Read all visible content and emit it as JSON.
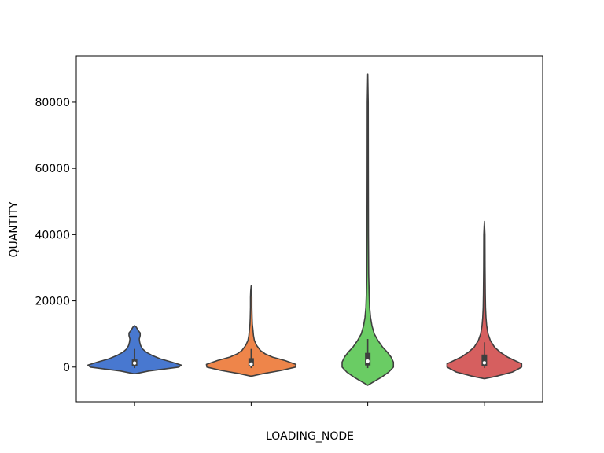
{
  "chart_data": {
    "type": "violin",
    "title": "",
    "xlabel": "LOADING_NODE",
    "ylabel": "QUANTITY",
    "ylim": [
      -10500,
      94000
    ],
    "yticks": [
      0,
      20000,
      40000,
      60000,
      80000
    ],
    "ytick_labels": [
      "0",
      "20000",
      "40000",
      "60000",
      "80000"
    ],
    "categories": [
      "",
      "",
      "",
      ""
    ],
    "grid": false,
    "series": [
      {
        "color": "#4878d0",
        "min": -2000,
        "max": 12500,
        "q1": 300,
        "median": 1200,
        "q3": 2300,
        "whisker_low": -300,
        "whisker_high": 5500,
        "profile": [
          [
            -2000,
            0.02
          ],
          [
            -1200,
            0.3
          ],
          [
            0,
            0.95
          ],
          [
            600,
            1.0
          ],
          [
            1500,
            0.8
          ],
          [
            2500,
            0.55
          ],
          [
            3500,
            0.38
          ],
          [
            4500,
            0.25
          ],
          [
            5500,
            0.17
          ],
          [
            6500,
            0.13
          ],
          [
            7500,
            0.11
          ],
          [
            8500,
            0.1
          ],
          [
            9500,
            0.12
          ],
          [
            10300,
            0.12
          ],
          [
            11200,
            0.07
          ],
          [
            12000,
            0.04
          ],
          [
            12500,
            0.0
          ]
        ]
      },
      {
        "color": "#ee854a",
        "min": -2700,
        "max": 24500,
        "q1": 200,
        "median": 900,
        "q3": 2700,
        "whisker_low": -300,
        "whisker_high": 5500,
        "profile": [
          [
            -2700,
            0.02
          ],
          [
            -2000,
            0.25
          ],
          [
            -1000,
            0.65
          ],
          [
            0,
            0.95
          ],
          [
            800,
            0.96
          ],
          [
            2000,
            0.72
          ],
          [
            3000,
            0.46
          ],
          [
            4000,
            0.3
          ],
          [
            5000,
            0.2
          ],
          [
            6500,
            0.12
          ],
          [
            8000,
            0.07
          ],
          [
            9500,
            0.05
          ],
          [
            11000,
            0.04
          ],
          [
            13000,
            0.025
          ],
          [
            15000,
            0.02
          ],
          [
            18000,
            0.015
          ],
          [
            21000,
            0.015
          ],
          [
            23000,
            0.01
          ],
          [
            24500,
            0.0
          ]
        ]
      },
      {
        "color": "#6acc64",
        "min": -5500,
        "max": 88500,
        "q1": 500,
        "median": 1800,
        "q3": 4300,
        "whisker_low": -300,
        "whisker_high": 8500,
        "profile": [
          [
            -5500,
            0.0
          ],
          [
            -4500,
            0.12
          ],
          [
            -3000,
            0.3
          ],
          [
            -1500,
            0.45
          ],
          [
            0,
            0.55
          ],
          [
            1500,
            0.55
          ],
          [
            3000,
            0.5
          ],
          [
            4500,
            0.42
          ],
          [
            6000,
            0.32
          ],
          [
            8000,
            0.22
          ],
          [
            10000,
            0.14
          ],
          [
            12500,
            0.09
          ],
          [
            15000,
            0.06
          ],
          [
            18000,
            0.04
          ],
          [
            22000,
            0.03
          ],
          [
            28000,
            0.02
          ],
          [
            40000,
            0.015
          ],
          [
            60000,
            0.012
          ],
          [
            80000,
            0.01
          ],
          [
            88500,
            0.0
          ]
        ]
      },
      {
        "color": "#d65f5f",
        "min": -3500,
        "max": 44000,
        "q1": 400,
        "median": 1300,
        "q3": 3800,
        "whisker_low": -300,
        "whisker_high": 7500,
        "profile": [
          [
            -3500,
            0.0
          ],
          [
            -2800,
            0.25
          ],
          [
            -1500,
            0.6
          ],
          [
            0,
            0.8
          ],
          [
            1000,
            0.8
          ],
          [
            2000,
            0.65
          ],
          [
            3000,
            0.5
          ],
          [
            4500,
            0.34
          ],
          [
            6000,
            0.22
          ],
          [
            8000,
            0.13
          ],
          [
            10000,
            0.08
          ],
          [
            12500,
            0.05
          ],
          [
            15000,
            0.035
          ],
          [
            18000,
            0.025
          ],
          [
            22000,
            0.02
          ],
          [
            30000,
            0.015
          ],
          [
            40000,
            0.012
          ],
          [
            44000,
            0.0
          ]
        ]
      }
    ]
  }
}
